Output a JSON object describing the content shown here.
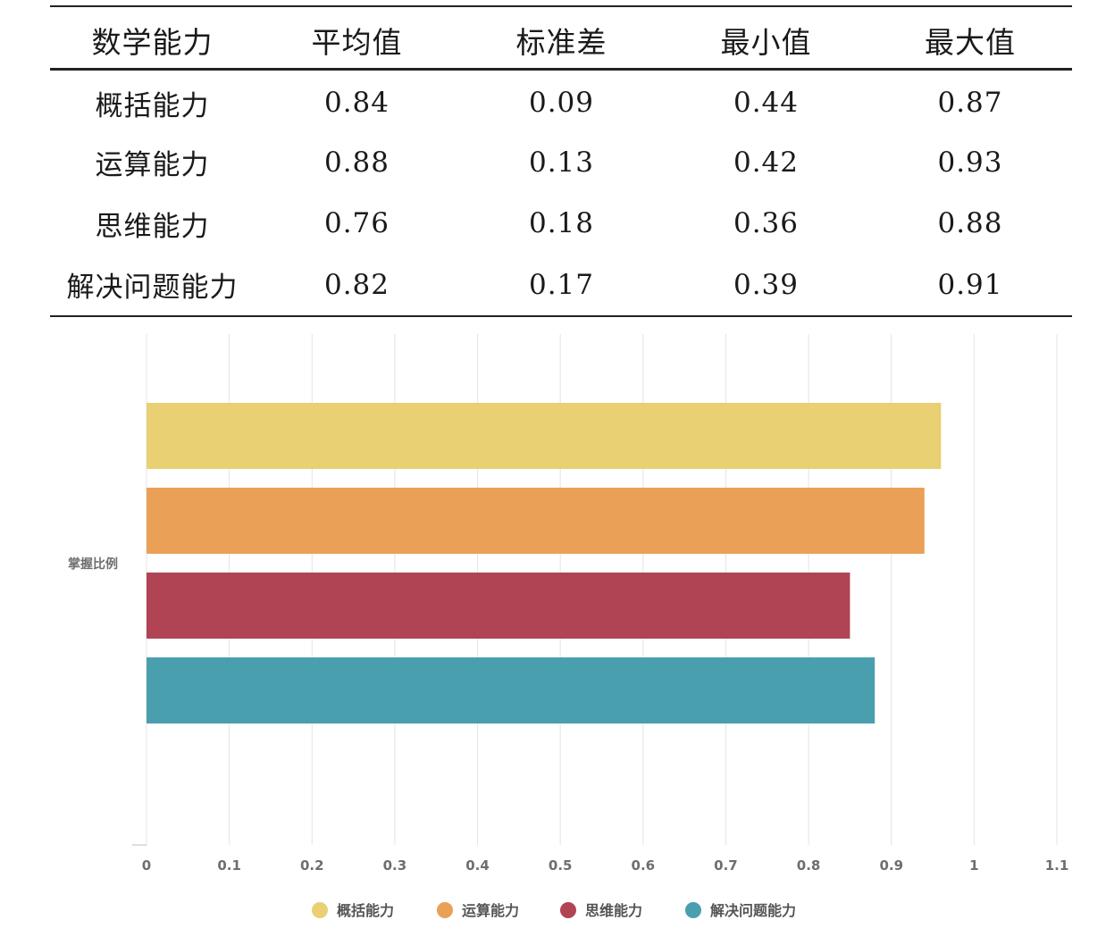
{
  "table": {
    "headers": [
      "数学能力",
      "平均值",
      "标准差",
      "最小值",
      "最大值"
    ],
    "rows": [
      [
        "概括能力",
        "0.84",
        "0.09",
        "0.44",
        "0.87"
      ],
      [
        "运算能力",
        "0.88",
        "0.13",
        "0.42",
        "0.93"
      ],
      [
        "思维能力",
        "0.76",
        "0.18",
        "0.36",
        "0.88"
      ],
      [
        "解决问题能力",
        "0.82",
        "0.17",
        "0.39",
        "0.91"
      ]
    ]
  },
  "chart_data": {
    "type": "bar",
    "orientation": "horizontal",
    "ylabel": "掌握比例",
    "categories": [
      "掌握比例"
    ],
    "series": [
      {
        "name": "概括能力",
        "values": [
          0.96
        ],
        "color": "#e8d073"
      },
      {
        "name": "运算能力",
        "values": [
          0.94
        ],
        "color": "#eba057"
      },
      {
        "name": "思维能力",
        "values": [
          0.85
        ],
        "color": "#b04454"
      },
      {
        "name": "解决问题能力",
        "values": [
          0.88
        ],
        "color": "#4a9fae"
      }
    ],
    "xlim": [
      0,
      1.1
    ],
    "xticks": [
      "0",
      "0.1",
      "0.2",
      "0.3",
      "0.4",
      "0.5",
      "0.6",
      "0.7",
      "0.8",
      "0.9",
      "1",
      "1.1"
    ],
    "grid": true,
    "legend_position": "bottom-center"
  }
}
